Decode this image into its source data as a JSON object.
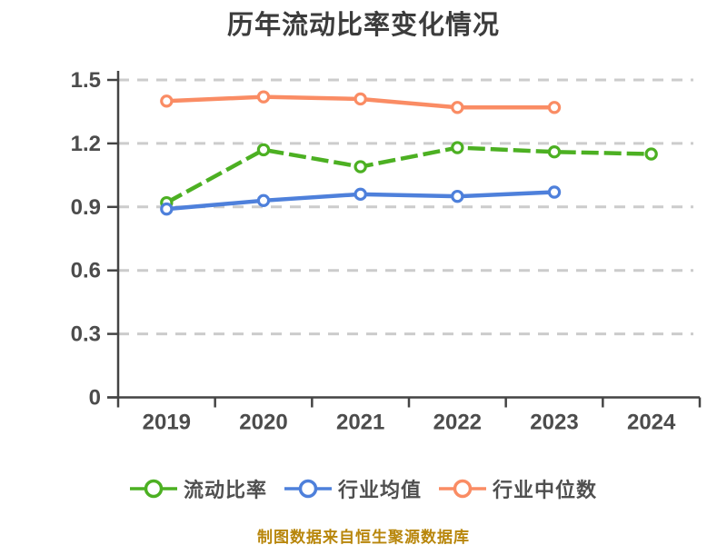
{
  "chart_data": {
    "type": "line",
    "title": "历年流动比率变化情况",
    "source_note": "制图数据来自恒生聚源数据库",
    "categories": [
      "2019",
      "2020",
      "2021",
      "2022",
      "2023",
      "2024"
    ],
    "xlabel": "",
    "ylabel": "",
    "ylim": [
      0,
      1.5
    ],
    "yticks": [
      0,
      0.3,
      0.6,
      0.9,
      1.2,
      1.5
    ],
    "ytick_labels": [
      "0",
      "0.3",
      "0.6",
      "0.9",
      "1.2",
      "1.5"
    ],
    "grid": "horizontal dashed gridlines on",
    "legend_position": "bottom",
    "marker": "circle, white fill with colored ring",
    "series": [
      {
        "name": "流动比率",
        "key": "current-ratio",
        "color": "#4CB022",
        "line_style": "dashed",
        "values": [
          0.92,
          1.17,
          1.09,
          1.18,
          1.16,
          1.15
        ]
      },
      {
        "name": "行业均值",
        "key": "industry-average",
        "color": "#4E80DB",
        "line_style": "solid",
        "values": [
          0.89,
          0.93,
          0.96,
          0.95,
          0.97,
          null
        ]
      },
      {
        "name": "行业中位数",
        "key": "industry-median",
        "color": "#FA8C64",
        "line_style": "solid",
        "values": [
          1.4,
          1.42,
          1.41,
          1.37,
          1.37,
          null
        ]
      }
    ],
    "colors": {
      "title": "#3C3C3C",
      "axis": "#444444",
      "tick_label": "#4C4C4C",
      "gridline": "#CCCCCC",
      "source_note": "#B8860B",
      "background": "#FFFFFF"
    }
  }
}
